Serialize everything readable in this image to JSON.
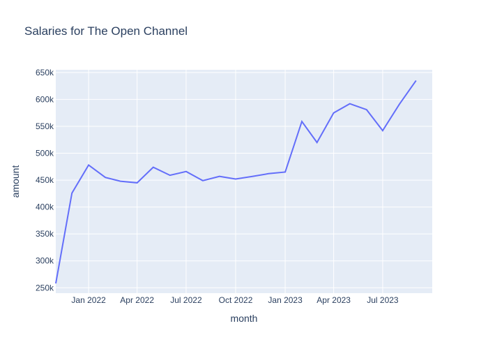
{
  "chart_data": {
    "type": "line",
    "title": "Salaries for The Open Channel",
    "xlabel": "month",
    "ylabel": "amount",
    "ylim": [
      240000,
      655000
    ],
    "xlim": [
      "2021-11-01",
      "2023-10-01"
    ],
    "grid": true,
    "colors": {
      "plot_bg": "#E5ECF6",
      "line": "#636EFA",
      "grid": "#ffffff",
      "text": "#2a3f5f"
    },
    "yticks": [
      {
        "value": 250000,
        "label": "250k"
      },
      {
        "value": 300000,
        "label": "300k"
      },
      {
        "value": 350000,
        "label": "350k"
      },
      {
        "value": 400000,
        "label": "400k"
      },
      {
        "value": 450000,
        "label": "450k"
      },
      {
        "value": 500000,
        "label": "500k"
      },
      {
        "value": 550000,
        "label": "550k"
      },
      {
        "value": 600000,
        "label": "600k"
      },
      {
        "value": 650000,
        "label": "650k"
      }
    ],
    "xticks": [
      {
        "value": "2022-01-01",
        "label": "Jan 2022"
      },
      {
        "value": "2022-04-01",
        "label": "Apr 2022"
      },
      {
        "value": "2022-07-01",
        "label": "Jul 2022"
      },
      {
        "value": "2022-10-01",
        "label": "Oct 2022"
      },
      {
        "value": "2023-01-01",
        "label": "Jan 2023"
      },
      {
        "value": "2023-04-01",
        "label": "Apr 2023"
      },
      {
        "value": "2023-07-01",
        "label": "Jul 2023"
      }
    ],
    "x": [
      "2021-11-01",
      "2021-12-01",
      "2022-01-01",
      "2022-02-01",
      "2022-03-01",
      "2022-04-01",
      "2022-05-01",
      "2022-06-01",
      "2022-07-01",
      "2022-08-01",
      "2022-09-01",
      "2022-10-01",
      "2022-11-01",
      "2022-12-01",
      "2023-01-01",
      "2023-02-01",
      "2023-03-01",
      "2023-04-01",
      "2023-05-01",
      "2023-06-01",
      "2023-07-01",
      "2023-08-01",
      "2023-09-01"
    ],
    "values": [
      258000,
      426000,
      478000,
      455000,
      448000,
      445000,
      474000,
      459000,
      466000,
      449000,
      457000,
      452000,
      457000,
      462000,
      465000,
      559000,
      520000,
      575000,
      592000,
      581000,
      542000,
      591000,
      635000
    ]
  }
}
